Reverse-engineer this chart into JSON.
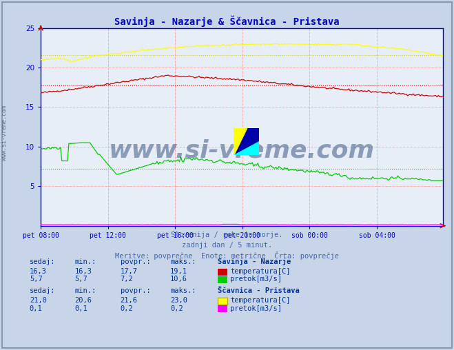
{
  "title": "Savinja - Nazarje & Ščavnica - Pristava",
  "title_color": "#0000cc",
  "bg_color": "#c8d4e8",
  "plot_bg_color": "#e8eef8",
  "x_labels": [
    "pet 08:00",
    "pet 12:00",
    "pet 16:00",
    "pet 20:00",
    "sob 00:00",
    "sob 04:00"
  ],
  "x_ticks_idx": [
    0,
    48,
    96,
    144,
    192,
    240
  ],
  "n_points": 288,
  "y_min": 0,
  "y_max": 25,
  "y_ticks": [
    5,
    10,
    15,
    20,
    25
  ],
  "grid_color_major": "#ffaaaa",
  "grid_color_minor": "#ffdddd",
  "subtitle_lines": [
    "Slovenija / reke in morje.",
    "zadnji dan / 5 minut.",
    "Meritve: povprečne  Enote: metrične  Črta: povprečje"
  ],
  "subtitle_color": "#4466aa",
  "legend_color": "#003399",
  "watermark": "www.si-vreme.com",
  "watermark_color": "#1a3a6a",
  "series": {
    "sav_temp": {
      "color": "#cc0000",
      "avg": 17.7,
      "min_val": 16.3,
      "max_val": 19.1,
      "sedaj": "16,3",
      "min_s": "16,3",
      "povpr": "17,7",
      "maks": "19,1",
      "label": "temperatura[C]"
    },
    "sav_pretok": {
      "color": "#00cc00",
      "avg": 7.2,
      "min_val": 5.7,
      "max_val": 10.6,
      "sedaj": "5,7",
      "min_s": "5,7",
      "povpr": "7,2",
      "maks": "10,6",
      "label": "pretok[m3/s]"
    },
    "sca_temp": {
      "color": "#ffff00",
      "avg": 21.6,
      "min_val": 20.6,
      "max_val": 23.0,
      "sedaj": "21,0",
      "min_s": "20,6",
      "povpr": "21,6",
      "maks": "23,0",
      "label": "temperatura[C]"
    },
    "sca_pretok": {
      "color": "#ff00ff",
      "avg": 0.2,
      "min_val": 0.1,
      "max_val": 0.2,
      "sedaj": "0,1",
      "min_s": "0,1",
      "povpr": "0,2",
      "maks": "0,2",
      "label": "pretok[m3/s]"
    }
  },
  "axis_color": "#0000cc",
  "tick_color": "#0000cc",
  "logo_colors": {
    "yellow": "#ffff00",
    "cyan": "#00ffff",
    "blue": "#0000aa"
  },
  "side_label": "www.si-vreme.com",
  "legend_headers": [
    "sedaj:",
    "min.:",
    "povpr.:",
    "maks.:"
  ],
  "legend_station1": "Savinja - Nazarje",
  "legend_station2": "Ščavnica - Pristava"
}
